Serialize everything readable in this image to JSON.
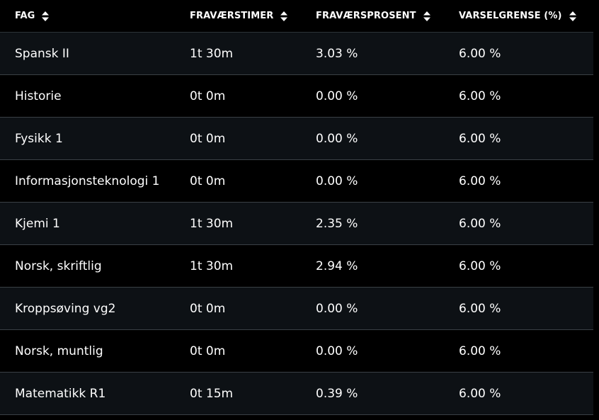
{
  "table": {
    "headers": [
      {
        "label": "FAG",
        "sort_icon": "sort-up-down-icon"
      },
      {
        "label": "FRAVÆRSTIMER",
        "sort_icon": "sort-up-down-icon"
      },
      {
        "label": "FRAVÆRSPROSENT",
        "sort_icon": "sort-up-down-icon"
      },
      {
        "label": "VARSELGRENSE (%)",
        "sort_icon": "sort-up-down-icon"
      }
    ],
    "rows": [
      {
        "fag": "Spansk II",
        "timer": "1t 30m",
        "prosent": "3.03 %",
        "grense": "6.00 %"
      },
      {
        "fag": "Historie",
        "timer": "0t 0m",
        "prosent": "0.00 %",
        "grense": "6.00 %"
      },
      {
        "fag": "Fysikk 1",
        "timer": "0t 0m",
        "prosent": "0.00 %",
        "grense": "6.00 %"
      },
      {
        "fag": "Informasjonsteknologi 1",
        "timer": "0t 0m",
        "prosent": "0.00 %",
        "grense": "6.00 %"
      },
      {
        "fag": "Kjemi 1",
        "timer": "1t 30m",
        "prosent": "2.35 %",
        "grense": "6.00 %"
      },
      {
        "fag": "Norsk, skriftlig",
        "timer": "1t 30m",
        "prosent": "2.94 %",
        "grense": "6.00 %"
      },
      {
        "fag": "Kroppsøving vg2",
        "timer": "0t 0m",
        "prosent": "0.00 %",
        "grense": "6.00 %"
      },
      {
        "fag": "Norsk, muntlig",
        "timer": "0t 0m",
        "prosent": "0.00 %",
        "grense": "6.00 %"
      },
      {
        "fag": "Matematikk R1",
        "timer": "0t 15m",
        "prosent": "0.39 %",
        "grense": "6.00 %"
      }
    ]
  },
  "colors": {
    "background": "#000000",
    "row_alt": "#0d1115",
    "divider": "#3a4045",
    "text": "#ffffff"
  }
}
